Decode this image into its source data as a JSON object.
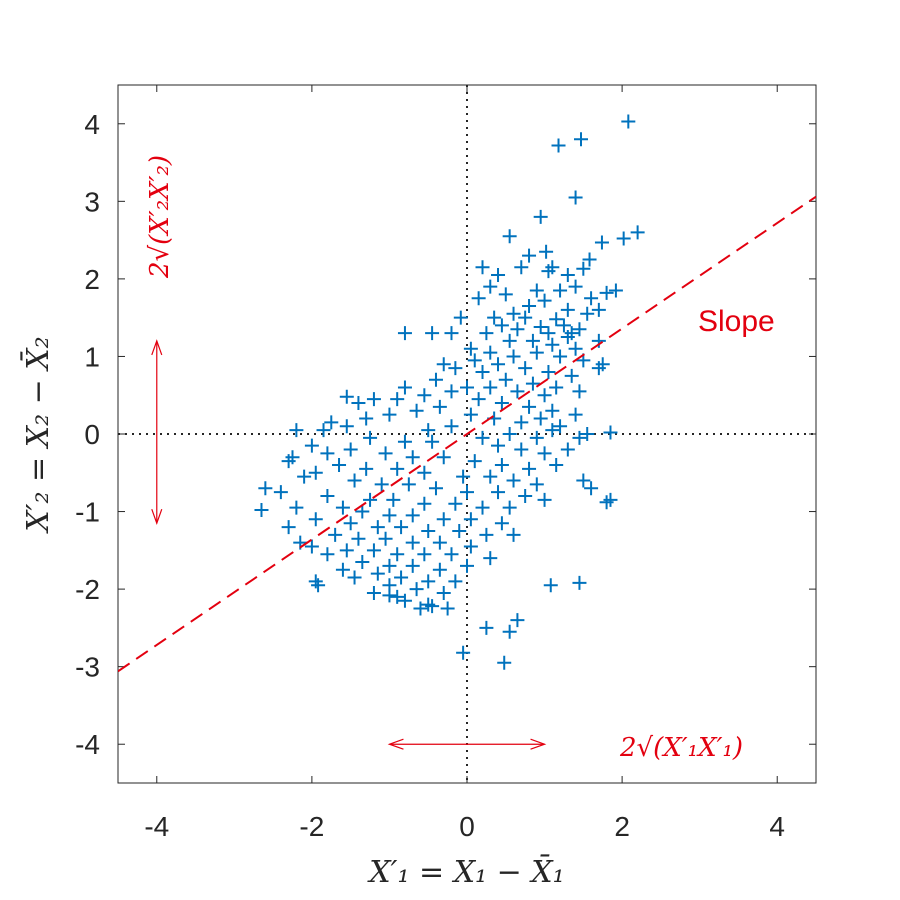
{
  "chart_data": {
    "type": "scatter",
    "xlabel": "X′₁ = X₁ − X̄₁",
    "ylabel": "X′₂ = X₂ − X̄₂",
    "xlim": [
      -4.5,
      4.5
    ],
    "ylim": [
      -4.5,
      4.5
    ],
    "xticks": [
      -4,
      -2,
      0,
      2,
      4
    ],
    "yticks": [
      -4,
      -3,
      -2,
      -1,
      0,
      1,
      2,
      3,
      4
    ],
    "xtick_labels": [
      "-4",
      "-2",
      "0",
      "2",
      "4"
    ],
    "ytick_labels": [
      "-4",
      "-3",
      "-2",
      "-1",
      "0",
      "1",
      "2",
      "3",
      "4"
    ],
    "grid": false,
    "marker": "+",
    "colors": {
      "points": "#0072bd",
      "annotation": "#e3000f",
      "axes": "#262626"
    },
    "regression_line": {
      "slope": 0.68,
      "intercept": 0.0,
      "style": "dashed"
    },
    "zero_lines": {
      "x": 0,
      "y": 0,
      "style": "dotted"
    },
    "annotations": {
      "slope_label": "Slope",
      "x_spread_label": "2√(X′₁X′₁)",
      "y_spread_label": "2√(X′₂X′₂)",
      "x_arrow": [
        -1.0,
        1.0
      ],
      "y_arrow": [
        -1.15,
        1.2
      ]
    },
    "points": [
      [
        2.08,
        4.03
      ],
      [
        1.47,
        3.8
      ],
      [
        1.18,
        3.72
      ],
      [
        1.4,
        3.05
      ],
      [
        0.95,
        2.8
      ],
      [
        2.2,
        2.6
      ],
      [
        1.74,
        2.47
      ],
      [
        2.02,
        2.52
      ],
      [
        0.55,
        2.55
      ],
      [
        1.02,
        2.35
      ],
      [
        0.8,
        2.3
      ],
      [
        1.58,
        2.25
      ],
      [
        1.05,
        2.1
      ],
      [
        1.1,
        2.15
      ],
      [
        1.3,
        2.05
      ],
      [
        1.5,
        2.13
      ],
      [
        0.7,
        2.15
      ],
      [
        0.4,
        2.05
      ],
      [
        0.2,
        2.15
      ],
      [
        0.3,
        1.9
      ],
      [
        0.5,
        1.8
      ],
      [
        0.9,
        1.85
      ],
      [
        1.2,
        1.85
      ],
      [
        1.4,
        1.9
      ],
      [
        1.6,
        1.75
      ],
      [
        1.8,
        1.82
      ],
      [
        1.92,
        1.85
      ],
      [
        1.0,
        1.72
      ],
      [
        0.8,
        1.65
      ],
      [
        1.3,
        1.6
      ],
      [
        1.55,
        1.55
      ],
      [
        0.6,
        1.55
      ],
      [
        0.35,
        1.5
      ],
      [
        1.7,
        1.6
      ],
      [
        0.15,
        1.75
      ],
      [
        0.75,
        1.5
      ],
      [
        1.15,
        1.48
      ],
      [
        0.45,
        1.4
      ],
      [
        0.65,
        1.35
      ],
      [
        0.95,
        1.38
      ],
      [
        1.25,
        1.4
      ],
      [
        1.45,
        1.35
      ],
      [
        0.25,
        1.3
      ],
      [
        1.05,
        1.3
      ],
      [
        1.3,
        1.25
      ],
      [
        1.35,
        1.3
      ],
      [
        0.55,
        1.2
      ],
      [
        0.85,
        1.2
      ],
      [
        1.1,
        1.15
      ],
      [
        1.4,
        1.1
      ],
      [
        1.7,
        1.2
      ],
      [
        -0.8,
        1.3
      ],
      [
        -0.2,
        1.3
      ],
      [
        -0.45,
        1.3
      ],
      [
        -0.08,
        1.5
      ],
      [
        0.05,
        1.1
      ],
      [
        0.3,
        1.05
      ],
      [
        0.6,
        1.0
      ],
      [
        0.9,
        1.05
      ],
      [
        1.2,
        1.0
      ],
      [
        1.5,
        0.95
      ],
      [
        0.1,
        0.95
      ],
      [
        0.4,
        0.9
      ],
      [
        0.75,
        0.85
      ],
      [
        1.05,
        0.8
      ],
      [
        1.35,
        0.75
      ],
      [
        1.7,
        0.85
      ],
      [
        1.75,
        0.9
      ],
      [
        -0.3,
        0.9
      ],
      [
        -0.15,
        0.85
      ],
      [
        0.2,
        0.8
      ],
      [
        0.5,
        0.7
      ],
      [
        0.85,
        0.65
      ],
      [
        1.15,
        0.6
      ],
      [
        1.45,
        0.55
      ],
      [
        0.3,
        0.6
      ],
      [
        0.65,
        0.55
      ],
      [
        1.0,
        0.5
      ],
      [
        -0.4,
        0.7
      ],
      [
        -0.8,
        0.6
      ],
      [
        -0.2,
        0.55
      ],
      [
        0.0,
        0.6
      ],
      [
        0.15,
        0.45
      ],
      [
        0.45,
        0.4
      ],
      [
        0.8,
        0.35
      ],
      [
        1.1,
        0.3
      ],
      [
        1.4,
        0.25
      ],
      [
        -0.55,
        0.5
      ],
      [
        -0.9,
        0.45
      ],
      [
        -1.2,
        0.45
      ],
      [
        -1.4,
        0.4
      ],
      [
        -1.55,
        0.48
      ],
      [
        -0.35,
        0.35
      ],
      [
        -0.65,
        0.3
      ],
      [
        0.05,
        0.25
      ],
      [
        0.35,
        0.2
      ],
      [
        0.7,
        0.15
      ],
      [
        0.95,
        0.2
      ],
      [
        1.2,
        0.1
      ],
      [
        -1.0,
        0.25
      ],
      [
        -1.3,
        0.2
      ],
      [
        -1.55,
        0.1
      ],
      [
        -1.75,
        0.15
      ],
      [
        -1.85,
        0.05
      ],
      [
        -0.2,
        0.1
      ],
      [
        -0.5,
        0.05
      ],
      [
        0.55,
        0.0
      ],
      [
        0.9,
        -0.05
      ],
      [
        1.1,
        0.05
      ],
      [
        1.45,
        -0.05
      ],
      [
        1.55,
        0.0
      ],
      [
        1.85,
        0.02
      ],
      [
        -2.2,
        0.05
      ],
      [
        -1.25,
        -0.05
      ],
      [
        -0.8,
        -0.1
      ],
      [
        -0.45,
        -0.1
      ],
      [
        0.2,
        -0.05
      ],
      [
        0.4,
        -0.15
      ],
      [
        0.7,
        -0.2
      ],
      [
        1.0,
        -0.25
      ],
      [
        1.3,
        -0.2
      ],
      [
        -1.5,
        -0.2
      ],
      [
        -1.8,
        -0.25
      ],
      [
        -2.0,
        -0.15
      ],
      [
        -1.05,
        -0.25
      ],
      [
        -0.7,
        -0.3
      ],
      [
        -0.3,
        -0.3
      ],
      [
        0.1,
        -0.35
      ],
      [
        0.45,
        -0.4
      ],
      [
        0.8,
        -0.45
      ],
      [
        1.15,
        -0.4
      ],
      [
        -2.25,
        -0.3
      ],
      [
        -2.3,
        -0.35
      ],
      [
        -1.65,
        -0.4
      ],
      [
        -1.3,
        -0.45
      ],
      [
        -0.9,
        -0.45
      ],
      [
        -0.55,
        -0.5
      ],
      [
        -0.05,
        -0.55
      ],
      [
        0.3,
        -0.55
      ],
      [
        0.6,
        -0.6
      ],
      [
        0.9,
        -0.65
      ],
      [
        1.5,
        -0.6
      ],
      [
        1.6,
        -0.7
      ],
      [
        -1.95,
        -0.5
      ],
      [
        -2.1,
        -0.55
      ],
      [
        -1.45,
        -0.6
      ],
      [
        -1.1,
        -0.65
      ],
      [
        -0.75,
        -0.65
      ],
      [
        -0.4,
        -0.7
      ],
      [
        0.0,
        -0.75
      ],
      [
        0.4,
        -0.75
      ],
      [
        0.75,
        -0.8
      ],
      [
        -2.6,
        -0.7
      ],
      [
        -2.4,
        -0.75
      ],
      [
        -1.8,
        -0.8
      ],
      [
        -1.25,
        -0.85
      ],
      [
        -0.95,
        -0.85
      ],
      [
        -0.55,
        -0.9
      ],
      [
        -0.15,
        -0.9
      ],
      [
        0.2,
        -0.95
      ],
      [
        0.55,
        -0.95
      ],
      [
        1.85,
        -0.85
      ],
      [
        1.8,
        -0.88
      ],
      [
        -2.2,
        -0.95
      ],
      [
        -1.6,
        -0.95
      ],
      [
        -1.35,
        -1.0
      ],
      [
        -1.0,
        -1.05
      ],
      [
        -0.7,
        -1.05
      ],
      [
        -0.3,
        -1.1
      ],
      [
        0.05,
        -1.1
      ],
      [
        0.45,
        -1.15
      ],
      [
        1.0,
        -0.85
      ],
      [
        -2.65,
        -0.98
      ],
      [
        -1.95,
        -1.1
      ],
      [
        -1.5,
        -1.15
      ],
      [
        -1.15,
        -1.2
      ],
      [
        -0.85,
        -1.2
      ],
      [
        -0.5,
        -1.25
      ],
      [
        -0.1,
        -1.25
      ],
      [
        0.25,
        -1.3
      ],
      [
        0.6,
        -1.3
      ],
      [
        -2.3,
        -1.2
      ],
      [
        -1.7,
        -1.3
      ],
      [
        -1.4,
        -1.35
      ],
      [
        -1.05,
        -1.35
      ],
      [
        -0.7,
        -1.4
      ],
      [
        -0.35,
        -1.4
      ],
      [
        0.05,
        -1.45
      ],
      [
        -2.0,
        -1.45
      ],
      [
        -1.55,
        -1.5
      ],
      [
        -1.2,
        -1.5
      ],
      [
        -0.9,
        -1.55
      ],
      [
        -0.55,
        -1.55
      ],
      [
        -0.2,
        -1.55
      ],
      [
        0.3,
        -1.6
      ],
      [
        -1.8,
        -1.55
      ],
      [
        -1.35,
        -1.65
      ],
      [
        -1.0,
        -1.7
      ],
      [
        -0.7,
        -1.7
      ],
      [
        -0.35,
        -1.75
      ],
      [
        0.0,
        -1.7
      ],
      [
        -2.15,
        -1.4
      ],
      [
        -1.6,
        -1.75
      ],
      [
        -1.15,
        -1.8
      ],
      [
        -0.85,
        -1.85
      ],
      [
        -0.5,
        -1.9
      ],
      [
        -0.15,
        -1.9
      ],
      [
        -1.45,
        -1.85
      ],
      [
        -1.0,
        -1.95
      ],
      [
        -0.65,
        -2.0
      ],
      [
        -0.3,
        -2.05
      ],
      [
        -1.95,
        -1.9
      ],
      [
        -1.92,
        -1.95
      ],
      [
        -1.2,
        -2.05
      ],
      [
        -0.8,
        -2.15
      ],
      [
        -0.5,
        -2.2
      ],
      [
        -0.25,
        -2.25
      ],
      [
        1.45,
        -1.92
      ],
      [
        1.08,
        -1.95
      ],
      [
        0.65,
        -2.4
      ],
      [
        0.55,
        -2.55
      ],
      [
        0.25,
        -2.5
      ],
      [
        0.48,
        -2.95
      ],
      [
        -0.05,
        -2.82
      ],
      [
        -1.0,
        -2.08
      ],
      [
        -0.6,
        -2.25
      ],
      [
        -0.45,
        -2.22
      ],
      [
        -0.9,
        -2.1
      ]
    ]
  }
}
